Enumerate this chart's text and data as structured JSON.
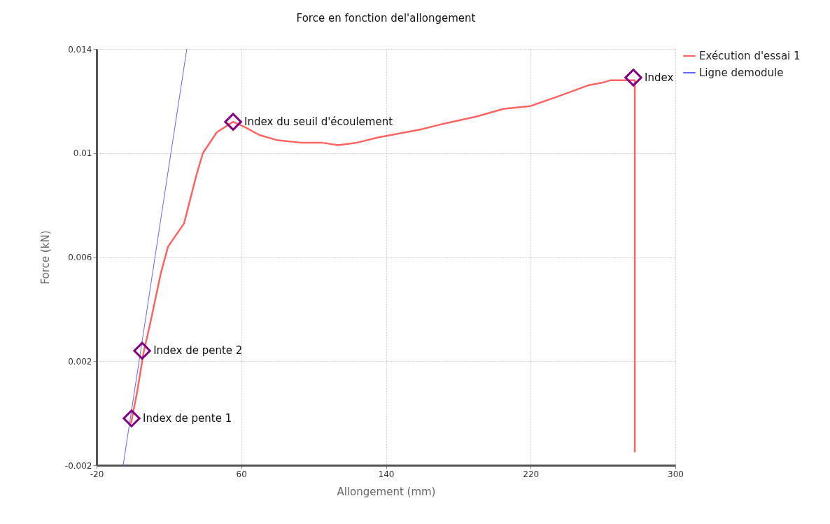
{
  "chart_data": {
    "type": "line",
    "title": "Force en fonction del'allongement",
    "xlabel": "Allongement (mm)",
    "ylabel": "Force (kN)",
    "xlim": [
      -20,
      300
    ],
    "xticks": [
      -20,
      60,
      140,
      220,
      300
    ],
    "ylim": [
      -0.002,
      0.014
    ],
    "yticks": [
      -0.002,
      0.002,
      0.006,
      0.01,
      0.014
    ],
    "grid": true,
    "legend": "top right",
    "series": [
      {
        "name": "Exécution d'essai 1",
        "color": "#ff6464",
        "x": [
          -1.0,
          2.4,
          5.9,
          9.8,
          15.6,
          19.5,
          28.4,
          35.0,
          38.8,
          46.5,
          55.5,
          62.0,
          69.8,
          79.5,
          93.0,
          104.6,
          113.5,
          124.0,
          135.6,
          143.3,
          158.8,
          170.4,
          189.8,
          205.2,
          219.6,
          236.2,
          251.7,
          259.4,
          264.4,
          271.0,
          277.6,
          277.6
        ],
        "values": [
          -0.0004,
          0.0008,
          0.0023,
          0.0035,
          0.0054,
          0.0064,
          0.0073,
          0.0091,
          0.01,
          0.0108,
          0.0112,
          0.011,
          0.0107,
          0.0105,
          0.0104,
          0.0104,
          0.0103,
          0.0104,
          0.0106,
          0.0107,
          0.0109,
          0.0111,
          0.0114,
          0.0117,
          0.0118,
          0.0122,
          0.0126,
          0.0127,
          0.0128,
          0.0128,
          0.0128,
          -0.0015
        ]
      },
      {
        "name": "Ligne demodule",
        "color": "#6464ff",
        "x": [
          -5.3,
          29.9
        ],
        "values": [
          -0.002,
          0.014
        ]
      },
      {
        "type": "scatter",
        "color": "#800080",
        "marker": "diamond",
        "x": [
          -0.65,
          5.2,
          55.5,
          276.8
        ],
        "values": [
          -0.0002,
          0.0024,
          0.0112,
          0.0129
        ]
      }
    ],
    "annotations": [
      {
        "text": "Index de pente 1",
        "x": -0.65,
        "y": -0.0002
      },
      {
        "text": "Index de pente 2",
        "x": 5.2,
        "y": 0.0024
      },
      {
        "text": "Index du seuil d'écoulement",
        "x": 55.5,
        "y": 0.0112
      },
      {
        "text": "Index",
        "x": 276.8,
        "y": 0.0129
      }
    ]
  }
}
